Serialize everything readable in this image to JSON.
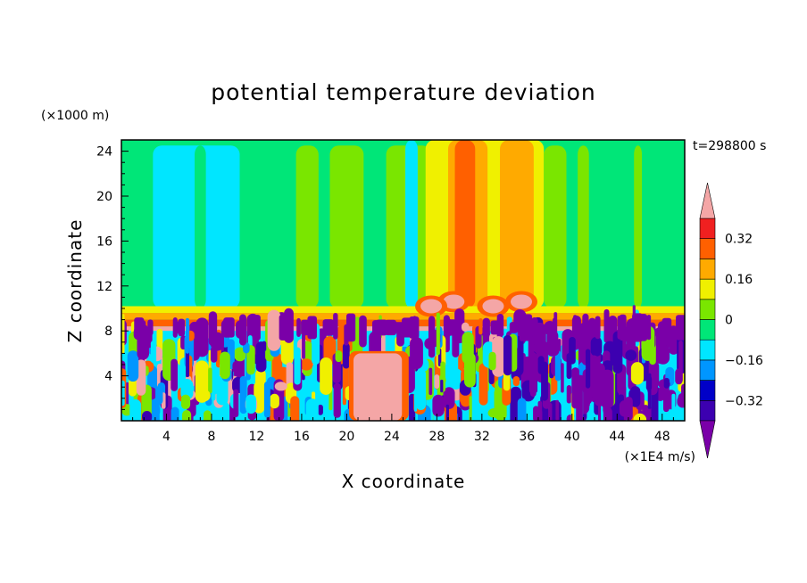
{
  "chart_data": {
    "type": "heatmap",
    "title": "potential temperature deviation",
    "xlabel": "X coordinate",
    "ylabel": "Z coordinate",
    "x_unit": "(×1E4 m/s)",
    "y_unit": "(×1000 m)",
    "time_label": "t=298800 s",
    "xlim": [
      0,
      50
    ],
    "ylim": [
      0,
      25
    ],
    "x_ticks": [
      4,
      8,
      12,
      16,
      20,
      24,
      28,
      32,
      36,
      40,
      44,
      48
    ],
    "y_ticks": [
      4,
      8,
      12,
      16,
      20,
      24
    ],
    "colorbar": {
      "levels": [
        -0.4,
        -0.32,
        -0.24,
        -0.16,
        -0.08,
        0,
        0.08,
        0.16,
        0.24,
        0.32,
        0.4
      ],
      "labeled_levels": [
        "0.32",
        "0.16",
        "0",
        "−0.16",
        "−0.32"
      ],
      "labeled_values": [
        0.32,
        0.16,
        0,
        -0.16,
        -0.32
      ],
      "colors_bottom_to_top": [
        "#7a00a8",
        "#3c00b0",
        "#0000c8",
        "#0096ff",
        "#00e6ff",
        "#00e678",
        "#7ae600",
        "#f0f000",
        "#ffaa00",
        "#ff6000",
        "#f02020",
        "#f4a6a6"
      ]
    },
    "regions": {
      "upper_background": "#00e678",
      "inversion_layer_z": [
        8,
        10
      ],
      "inversion_colors": [
        "#f4a6a6",
        "#ff6000",
        "#ffaa00",
        "#f0f000"
      ],
      "lower_turbulent_colors": [
        "#7a00a8",
        "#3c00b0",
        "#0096ff",
        "#00e6ff",
        "#7ae600",
        "#f0f000",
        "#ff6000",
        "#f4a6a6"
      ],
      "warm_plume_x": [
        27,
        37
      ],
      "cold_column_x": [
        4,
        10
      ]
    }
  }
}
